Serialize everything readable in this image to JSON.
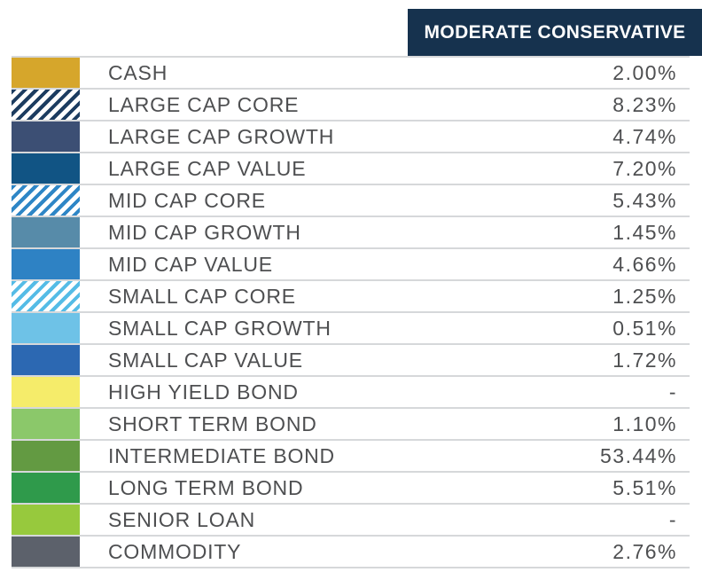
{
  "header": {
    "label": "MODERATE CONSERVATIVE"
  },
  "colors": {
    "header_bg": "#16324E",
    "divider": "#D6D8DA",
    "text": "#4E4F51"
  },
  "chart_data": {
    "type": "table",
    "title": "MODERATE CONSERVATIVE",
    "columns": [
      "MODERATE CONSERVATIVE"
    ],
    "rows": [
      {
        "label": "CASH",
        "value": "2.00%",
        "value_numeric": 2.0,
        "color": "#D6A62B",
        "pattern": "solid"
      },
      {
        "label": "LARGE CAP CORE",
        "value": "8.23%",
        "value_numeric": 8.23,
        "color": "#1C3C60",
        "pattern": "hatch"
      },
      {
        "label": "LARGE CAP GROWTH",
        "value": "4.74%",
        "value_numeric": 4.74,
        "color": "#3C4F74",
        "pattern": "solid"
      },
      {
        "label": "LARGE CAP VALUE",
        "value": "7.20%",
        "value_numeric": 7.2,
        "color": "#115484",
        "pattern": "solid"
      },
      {
        "label": "MID CAP CORE",
        "value": "5.43%",
        "value_numeric": 5.43,
        "color": "#2E86C6",
        "pattern": "hatch"
      },
      {
        "label": "MID CAP GROWTH",
        "value": "1.45%",
        "value_numeric": 1.45,
        "color": "#578BA9",
        "pattern": "solid"
      },
      {
        "label": "MID CAP VALUE",
        "value": "4.66%",
        "value_numeric": 4.66,
        "color": "#2E82C4",
        "pattern": "solid"
      },
      {
        "label": "SMALL CAP CORE",
        "value": "1.25%",
        "value_numeric": 1.25,
        "color": "#55BCE6",
        "pattern": "hatch"
      },
      {
        "label": "SMALL CAP GROWTH",
        "value": "0.51%",
        "value_numeric": 0.51,
        "color": "#6EC2E7",
        "pattern": "solid"
      },
      {
        "label": "SMALL CAP VALUE",
        "value": "1.72%",
        "value_numeric": 1.72,
        "color": "#2C68B2",
        "pattern": "solid"
      },
      {
        "label": "HIGH YIELD BOND",
        "value": "-",
        "value_numeric": null,
        "color": "#F5EC6A",
        "pattern": "solid"
      },
      {
        "label": "SHORT TERM BOND",
        "value": "1.10%",
        "value_numeric": 1.1,
        "color": "#8BC86A",
        "pattern": "solid"
      },
      {
        "label": "INTERMEDIATE BOND",
        "value": "53.44%",
        "value_numeric": 53.44,
        "color": "#639A42",
        "pattern": "solid"
      },
      {
        "label": "LONG TERM BOND",
        "value": "5.51%",
        "value_numeric": 5.51,
        "color": "#2F9A4B",
        "pattern": "solid"
      },
      {
        "label": "SENIOR LOAN",
        "value": "-",
        "value_numeric": null,
        "color": "#97C93D",
        "pattern": "solid"
      },
      {
        "label": "COMMODITY",
        "value": "2.76%",
        "value_numeric": 2.76,
        "color": "#5C616B",
        "pattern": "solid"
      }
    ]
  }
}
